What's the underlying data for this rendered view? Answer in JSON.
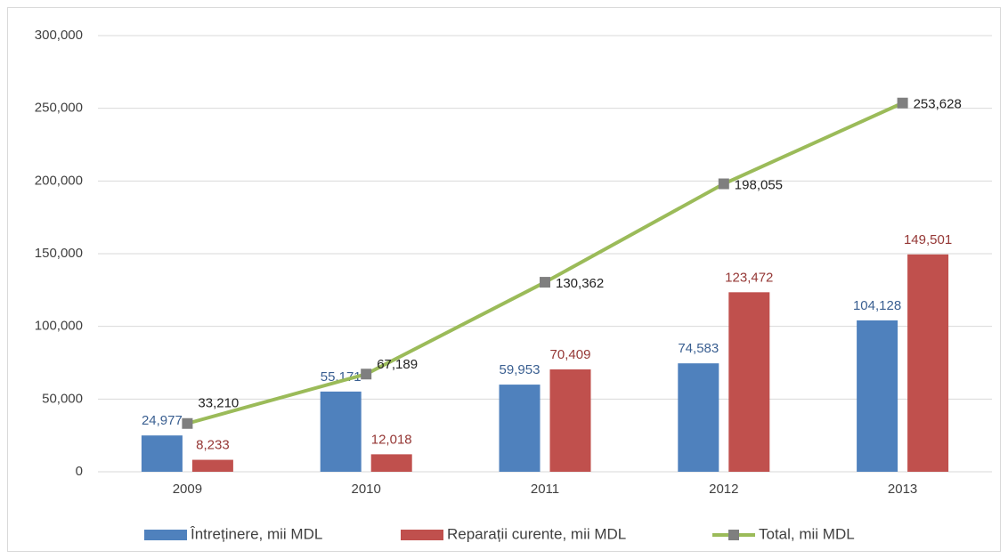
{
  "chart_data": {
    "type": "bar",
    "categories": [
      "2009",
      "2010",
      "2011",
      "2012",
      "2013"
    ],
    "series": [
      {
        "name": "Întreținere, mii MDL",
        "type": "bar",
        "color": "#4f81bd",
        "label_color": "#3a5f91",
        "values": [
          24977,
          55171,
          59953,
          74583,
          104128
        ],
        "value_labels": [
          "24,977",
          "55,171",
          "59,953",
          "74,583",
          "104,128"
        ]
      },
      {
        "name": "Reparații curente, mii MDL",
        "type": "bar",
        "color": "#c0504d",
        "label_color": "#953735",
        "values": [
          8233,
          12018,
          70409,
          123472,
          149501
        ],
        "value_labels": [
          "8,233",
          "12,018",
          "70,409",
          "123,472",
          "149,501"
        ]
      },
      {
        "name": "Total, mii MDL",
        "type": "line",
        "color": "#9bbb59",
        "marker_color": "#7f7f7f",
        "label_color": "#222222",
        "values": [
          33210,
          67189,
          130362,
          198055,
          253628
        ],
        "value_labels": [
          "33,210",
          "67,189",
          "130,362",
          "198,055",
          "253,628"
        ]
      }
    ],
    "ylim": [
      0,
      300000
    ],
    "yticks": [
      0,
      {
        "value": 50000,
        "label": "50,000"
      },
      {
        "value": 100000,
        "label": "100,000"
      },
      {
        "value": 150000,
        "label": "150,000"
      },
      {
        "value": 200000,
        "label": "200,000"
      },
      {
        "value": 250000,
        "label": "250,000"
      },
      {
        "value": 300000,
        "label": "300,000"
      }
    ],
    "grid": true,
    "legend": "bottom"
  }
}
